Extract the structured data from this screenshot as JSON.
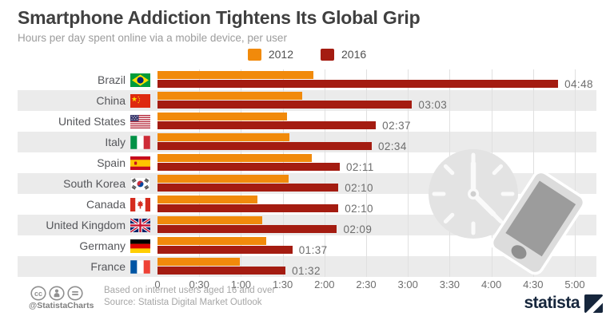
{
  "header": {
    "title": "Smartphone Addiction Tightens Its Global Grip",
    "subtitle": "Hours per day spent online via a mobile device, per user"
  },
  "legend": [
    {
      "label": "2012",
      "color": "#F18A0B"
    },
    {
      "label": "2016",
      "color": "#A41C11"
    }
  ],
  "colors": {
    "bar_2012": "#F18A0B",
    "bar_2016": "#A41C11",
    "stripe": "#ebebeb",
    "gridline": "#e0e0e0",
    "brand_navy": "#16263c"
  },
  "chart_data": {
    "type": "bar",
    "orientation": "horizontal",
    "title": "Smartphone Addiction Tightens Its Global Grip",
    "subtitle": "Hours per day spent online via a mobile device, per user",
    "categories": [
      "Brazil",
      "China",
      "United States",
      "Italy",
      "Spain",
      "South Korea",
      "Canada",
      "United Kingdom",
      "Germany",
      "France"
    ],
    "flags": [
      "brazil",
      "china",
      "united-states",
      "italy",
      "spain",
      "south-korea",
      "canada",
      "united-kingdom",
      "germany",
      "france"
    ],
    "series": [
      {
        "name": "2012",
        "color": "#F18A0B",
        "values_minutes_approx": [
          112,
          104,
          93,
          95,
          111,
          94,
          72,
          75,
          78,
          59
        ],
        "labels": [
          "",
          "",
          "",
          "",
          "",
          "",
          "",
          "",
          "",
          ""
        ]
      },
      {
        "name": "2016",
        "color": "#A41C11",
        "values_minutes": [
          288,
          183,
          157,
          154,
          131,
          130,
          130,
          129,
          97,
          92
        ],
        "labels": [
          "04:48",
          "03:03",
          "02:37",
          "02:34",
          "02:11",
          "02:10",
          "02:10",
          "02:09",
          "01:37",
          "01:32"
        ]
      }
    ],
    "x_axis": {
      "max_minutes": 300,
      "ticks": [
        {
          "label": "0",
          "minutes": 0
        },
        {
          "label": "0:30",
          "minutes": 30
        },
        {
          "label": "1:00",
          "minutes": 60
        },
        {
          "label": "1:30",
          "minutes": 90
        },
        {
          "label": "2:00",
          "minutes": 120
        },
        {
          "label": "2:30",
          "minutes": 150
        },
        {
          "label": "3:00",
          "minutes": 180
        },
        {
          "label": "3:30",
          "minutes": 210
        },
        {
          "label": "4:00",
          "minutes": 240
        },
        {
          "label": "4:30",
          "minutes": 270
        },
        {
          "label": "5:00",
          "minutes": 300
        }
      ]
    },
    "grid": true,
    "legend_position": "top",
    "row_stripes": "alternating, first row white"
  },
  "footer": {
    "note_line1": "Based on internet users aged 16 and over",
    "note_line2": "Source: Statista Digital Market Outlook",
    "handle": "@StatistaCharts",
    "brand": "statista"
  }
}
